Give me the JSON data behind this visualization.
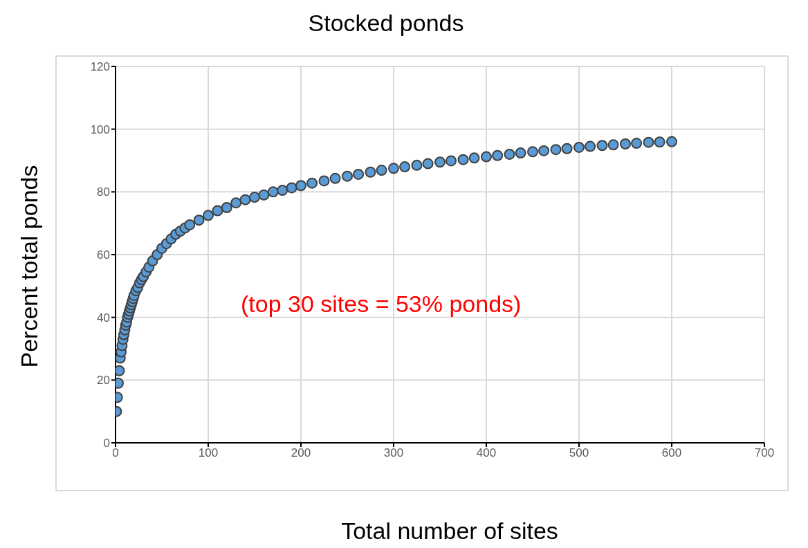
{
  "chart_data": {
    "type": "scatter",
    "title": "Stocked ponds",
    "xlabel": "Total number of sites",
    "ylabel": "Percent total ponds",
    "x": [
      1,
      2,
      3,
      4,
      5,
      6,
      7,
      8,
      9,
      10,
      11,
      12,
      13,
      14,
      15,
      16,
      17,
      18,
      19,
      20,
      22,
      24,
      26,
      28,
      30,
      33,
      36,
      40,
      45,
      50,
      55,
      60,
      65,
      70,
      75,
      80,
      90,
      100,
      110,
      120,
      130,
      140,
      150,
      160,
      170,
      180,
      190,
      200,
      212,
      225,
      237,
      250,
      262,
      275,
      287,
      300,
      312,
      325,
      337,
      350,
      362,
      375,
      387,
      400,
      412,
      425,
      437,
      450,
      462,
      475,
      487,
      500,
      512,
      525,
      537,
      550,
      562,
      575,
      587,
      600
    ],
    "series": [
      {
        "color": "#5b9bd5",
        "values": [
          10,
          14.5,
          19,
          23,
          27,
          29,
          31,
          33,
          34.5,
          36,
          37.5,
          38.5,
          40,
          41,
          42,
          43,
          44,
          45,
          46,
          47,
          48.5,
          49.5,
          51,
          52,
          53,
          54.5,
          56,
          58,
          60,
          62,
          63.5,
          65,
          66.5,
          67.5,
          68.5,
          69.5,
          71,
          72.5,
          74,
          75,
          76.5,
          77.5,
          78.3,
          79,
          80,
          80.5,
          81.3,
          82,
          82.8,
          83.5,
          84.3,
          85,
          85.6,
          86.3,
          86.9,
          87.5,
          88,
          88.5,
          89,
          89.5,
          89.9,
          90.3,
          90.8,
          91.2,
          91.6,
          92,
          92.4,
          92.8,
          93.1,
          93.5,
          93.8,
          94.2,
          94.5,
          94.8,
          95,
          95.3,
          95.5,
          95.8,
          95.9,
          96
        ]
      }
    ],
    "xlim": [
      0,
      700
    ],
    "ylim": [
      0,
      120
    ],
    "xticks": [
      0,
      100,
      200,
      300,
      400,
      500,
      600,
      700
    ],
    "yticks": [
      0,
      20,
      40,
      60,
      80,
      100,
      120
    ],
    "grid": true,
    "marker": "circle",
    "annotations": [
      "(top 30 sites = 53% ponds)"
    ]
  }
}
